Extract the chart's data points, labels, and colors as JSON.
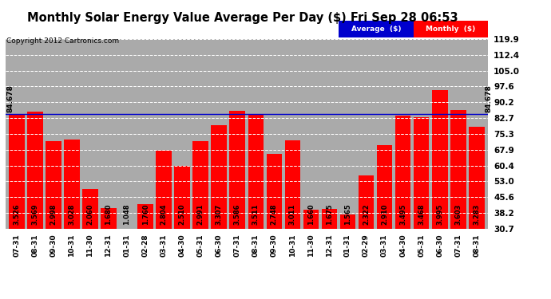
{
  "title": "Monthly Solar Energy Value Average Per Day ($) Fri Sep 28 06:53",
  "copyright": "Copyright 2012 Cartronics.com",
  "categories": [
    "07-31",
    "08-31",
    "09-30",
    "10-31",
    "11-30",
    "12-31",
    "01-31",
    "02-28",
    "03-31",
    "04-30",
    "05-31",
    "06-30",
    "07-31",
    "08-31",
    "09-30",
    "10-31",
    "11-30",
    "12-31",
    "01-31",
    "02-29",
    "03-31",
    "04-30",
    "05-31",
    "06-30",
    "07-31",
    "08-31"
  ],
  "values": [
    3.526,
    3.569,
    2.998,
    3.028,
    2.06,
    1.68,
    1.048,
    1.76,
    2.804,
    2.51,
    2.991,
    3.307,
    3.586,
    3.511,
    2.748,
    3.011,
    1.66,
    1.675,
    1.565,
    2.322,
    2.91,
    3.495,
    3.468,
    3.995,
    3.603,
    3.283
  ],
  "bar_color": "#FF0000",
  "average_value": 84.678,
  "average_line_color": "#0000CD",
  "y_tick_labels": [
    "30.7",
    "38.2",
    "45.6",
    "53.0",
    "60.4",
    "67.9",
    "75.3",
    "82.7",
    "90.2",
    "97.6",
    "105.0",
    "112.4",
    "119.9"
  ],
  "y_tick_values": [
    30.7,
    38.2,
    45.6,
    53.0,
    60.4,
    67.9,
    75.3,
    82.7,
    90.2,
    97.6,
    105.0,
    112.4,
    119.9
  ],
  "background_color": "#FFFFFF",
  "plot_bg_color": "#AAAAAA",
  "bar_label_fontsize": 6.0,
  "title_fontsize": 10.5,
  "legend_avg_color": "#0000CD",
  "legend_monthly_color": "#FF0000",
  "avg_label_value": "84.678",
  "scale_factor": 23.99
}
